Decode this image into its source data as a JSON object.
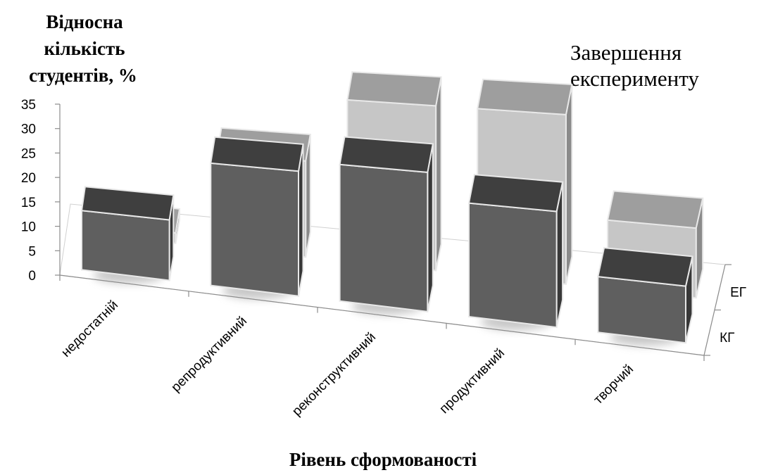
{
  "chart_data": {
    "type": "bar",
    "title": "Завершення експерименту",
    "title_lines": [
      "Завершення",
      "експерименту"
    ],
    "ylabel": "Відносна кількість студентів, %",
    "ylabel_lines": [
      "Відносна",
      "кількість",
      "студентів, %"
    ],
    "xlabel": "Рівень сформованості",
    "categories": [
      "недостатній",
      "репродуктивний",
      "реконструктивний",
      "продуктивний",
      "творчий"
    ],
    "ylim": [
      0,
      35
    ],
    "yticks": [
      0,
      5,
      10,
      15,
      20,
      25,
      30,
      35
    ],
    "series": [
      {
        "name": "КГ",
        "values": [
          12,
          24,
          26,
          21,
          10
        ],
        "color": "#5f5f5f"
      },
      {
        "name": "ЕГ",
        "values": [
          2,
          18,
          30,
          30,
          12
        ],
        "color": "#c6c6c6"
      }
    ],
    "grid": false,
    "style": "3d-column"
  }
}
